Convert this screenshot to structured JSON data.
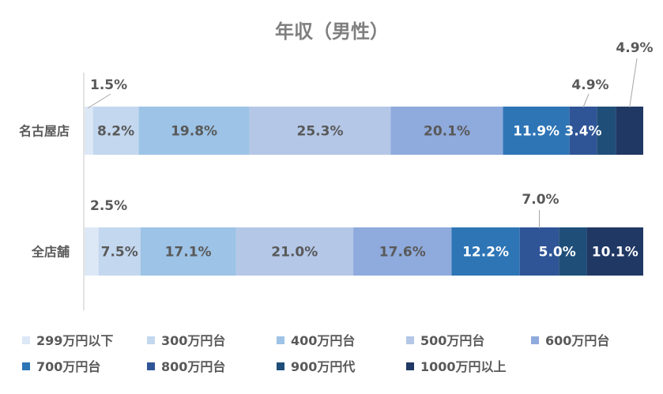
{
  "chart_data": {
    "type": "bar",
    "orientation": "horizontal",
    "stacked": "percent",
    "title": "年収（男性）",
    "categories": [
      "名古屋店",
      "全店舗"
    ],
    "series": [
      {
        "name": "299万円以下",
        "color": "#dde8f6",
        "values": [
          1.5,
          2.5
        ]
      },
      {
        "name": "300万円台",
        "color": "#c3d7ef",
        "values": [
          8.2,
          7.5
        ]
      },
      {
        "name": "400万円台",
        "color": "#9dc3e6",
        "values": [
          19.8,
          17.1
        ]
      },
      {
        "name": "500万円台",
        "color": "#b4c7e7",
        "values": [
          25.3,
          21.0
        ]
      },
      {
        "name": "600万円台",
        "color": "#8faadc",
        "values": [
          20.1,
          17.6
        ]
      },
      {
        "name": "700万円台",
        "color": "#2e75b6",
        "values": [
          11.9,
          12.2
        ]
      },
      {
        "name": "800万円台",
        "color": "#2f5597",
        "values": [
          4.9,
          7.0
        ]
      },
      {
        "name": "900万円代",
        "color": "#1f4e79",
        "values": [
          3.4,
          5.0
        ]
      },
      {
        "name": "1000万円以上",
        "color": "#203864",
        "values": [
          4.9,
          10.1
        ]
      }
    ],
    "data_labels": [
      [
        "1.5%",
        "8.2%",
        "19.8%",
        "25.3%",
        "20.1%",
        "11.9%",
        "4.9%",
        "3.4%",
        "4.9%"
      ],
      [
        "2.5%",
        "7.5%",
        "17.1%",
        "21.0%",
        "17.6%",
        "12.2%",
        "7.0%",
        "5.0%",
        "10.1%"
      ]
    ],
    "xlim": [
      0,
      100
    ],
    "legend_position": "bottom",
    "grid": false
  }
}
